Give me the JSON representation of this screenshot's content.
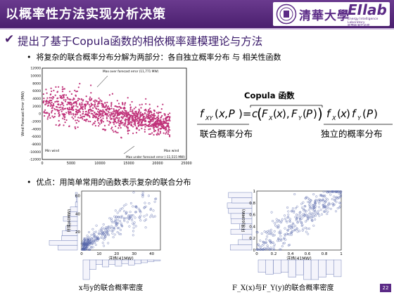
{
  "header": {
    "title": "以概率性方法实现分析决策",
    "logo_text": "清華大學",
    "lab_logo": "EIlab",
    "lab_sub1": "Energy Intelligence Laboratory",
    "lab_sub2": "智慧能源实验室"
  },
  "main_bullet": "提出了基于Copula函数的相依概率建模理论与方法",
  "sub_bullet_1": "将复杂的联合概率分布分解为两部分：各自独立概率分布 与 相关性函数",
  "sub_bullet_2": "优点：用简单常用的函数表示复杂的联合分布",
  "formula": {
    "copula_label": "Copula 函数",
    "joint_label": "联合概率分布",
    "independent_label": "独立的概率分布"
  },
  "chart_data": [
    {
      "type": "scatter",
      "ylabel": "Wind Forecast Error (MW)",
      "yticks": [
        "12000",
        "10000",
        "8000",
        "6000",
        "4000",
        "2000",
        "0",
        "-2000",
        "-4000",
        "-6000",
        "-8000",
        "-10000",
        "-12000"
      ],
      "xticks": [
        "0",
        "5000",
        "10000",
        "15000",
        "20000",
        "25000"
      ],
      "xlim": [
        0,
        25000
      ],
      "ylim": [
        -12000,
        12000
      ],
      "annotations": [
        "Max over forecast error (11,771 MW)",
        "Max under forecast error (-11,515 MW)",
        "Min wind",
        "Max wind"
      ]
    },
    {
      "type": "scatter",
      "xlabel": "洋场(41MW)",
      "ylabel": "环境(60MW)",
      "xticks": [
        "0",
        "10",
        "20",
        "30",
        "40"
      ],
      "yticks": [
        "20",
        "40",
        "60"
      ],
      "xlim": [
        0,
        45
      ],
      "ylim": [
        0,
        65
      ],
      "caption": "x与y的联合概率密度"
    },
    {
      "type": "scatter",
      "xlabel": "洋场(41MW)",
      "ylabel": "环境(60MW)",
      "xticks": [
        "0",
        "0.2",
        "0.4",
        "0.6",
        "0.8",
        "1"
      ],
      "yticks": [
        "0",
        "0.2",
        "0.4",
        "0.6",
        "0.8",
        "1"
      ],
      "xlim": [
        0,
        1
      ],
      "ylim": [
        0,
        1
      ],
      "caption": "F_X(x)与F_Y(y)的联合概率密度"
    }
  ],
  "page_number": "22",
  "colors": {
    "header": "#5b2a86",
    "scatter1": "#c0337a",
    "scatter2": "#5566aa"
  }
}
